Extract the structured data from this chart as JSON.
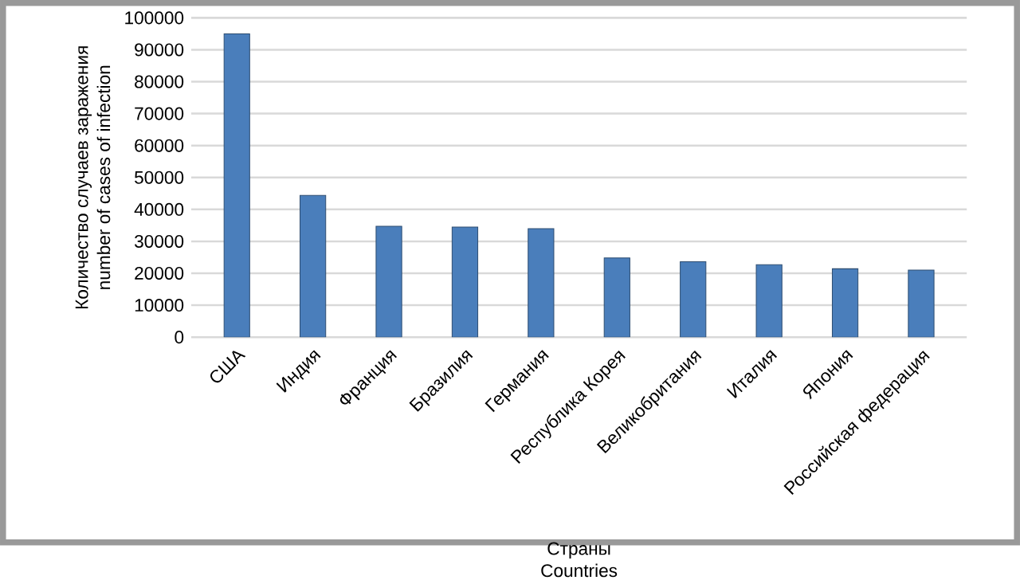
{
  "chart_data": {
    "type": "bar",
    "xlabel": "Страны\nCountries",
    "ylabel": "Количество случаев заражения\nnumber of cases of infection",
    "categories": [
      "США",
      "Индия",
      "Франция",
      "Бразилия",
      "Германия",
      "Республика Корея",
      "Великобритания",
      "Италия",
      "Япония",
      "Российская федерация"
    ],
    "values": [
      95000,
      44400,
      34700,
      34500,
      34000,
      24800,
      23600,
      22700,
      21400,
      21000
    ],
    "color": "#4a7ebb",
    "ylim": [
      0,
      100000
    ],
    "yticks": [
      0,
      10000,
      20000,
      30000,
      40000,
      50000,
      60000,
      70000,
      80000,
      90000,
      100000
    ],
    "grid": "y"
  }
}
